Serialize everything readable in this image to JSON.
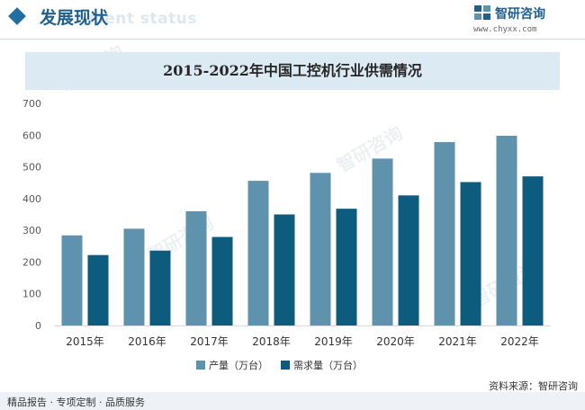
{
  "header": {
    "title": "发展现状",
    "ghost_text": "ment status",
    "logo_text": "智研咨询",
    "logo_url": "www.chyxx.com"
  },
  "watermark": {
    "text": "智研咨询"
  },
  "footer": {
    "left_text": "精品报告 · 专项定制 · 品质服务",
    "source_text": "资料来源：智研咨询"
  },
  "colors": {
    "production": "#5f93ad",
    "demand": "#0d5b7d",
    "accent": "#1f6fa3"
  },
  "chart_data": {
    "type": "bar",
    "title": "2015-2022年中国工控机行业供需情况",
    "categories": [
      "2015年",
      "2016年",
      "2017年",
      "2018年",
      "2019年",
      "2020年",
      "2021年",
      "2022年"
    ],
    "series": [
      {
        "name": "产量（万台）",
        "values": [
          284,
          305,
          360,
          456,
          481,
          526,
          578,
          598
        ]
      },
      {
        "name": "需求量（万台）",
        "values": [
          222,
          236,
          279,
          350,
          368,
          410,
          452,
          470
        ]
      }
    ],
    "ylim": [
      0,
      700
    ],
    "yticks": [
      0,
      100,
      200,
      300,
      400,
      500,
      600,
      700
    ],
    "legend": "bottom",
    "grid": false
  }
}
